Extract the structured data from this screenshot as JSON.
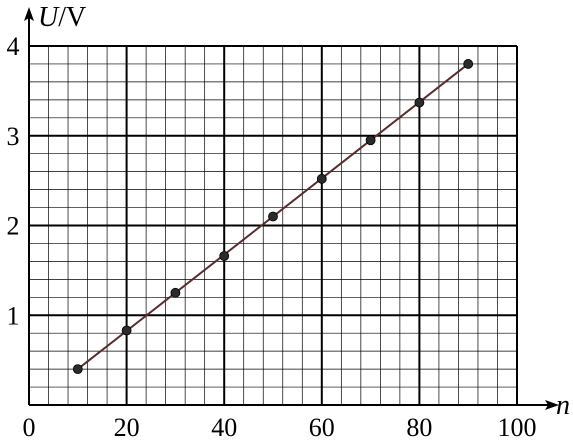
{
  "chart_data": {
    "type": "scatter",
    "title": "",
    "xlabel": "n",
    "ylabel": "U/V",
    "xlabel_var": "n",
    "ylabel_var": "U",
    "ylabel_unit": "/V",
    "xlim": [
      0,
      100
    ],
    "ylim": [
      0,
      4
    ],
    "x_major_ticks": [
      0,
      20,
      40,
      60,
      80,
      100
    ],
    "y_major_ticks": [
      1,
      2,
      3,
      4
    ],
    "x_tick_labels": [
      "0",
      "20",
      "40",
      "60",
      "80",
      "100"
    ],
    "y_tick_labels": [
      "1",
      "2",
      "3",
      "4"
    ],
    "x_minor_step": 4,
    "y_minor_step": 0.2,
    "grid": true,
    "series": [
      {
        "values": [
          {
            "x": 10,
            "y": 0.4
          },
          {
            "x": 20,
            "y": 0.83
          },
          {
            "x": 30,
            "y": 1.25
          },
          {
            "x": 40,
            "y": 1.66
          },
          {
            "x": 50,
            "y": 2.1
          },
          {
            "x": 60,
            "y": 2.52
          },
          {
            "x": 70,
            "y": 2.95
          },
          {
            "x": 80,
            "y": 3.37
          },
          {
            "x": 90,
            "y": 3.8
          }
        ]
      }
    ],
    "fit_line": {
      "x1": 10,
      "y1": 0.4,
      "x2": 90,
      "y2": 3.8
    },
    "colors": {
      "point": "#2b2b2b",
      "fit_line": "#5a2c2c",
      "grid_major": "#000000",
      "grid_minor": "#000000"
    }
  }
}
